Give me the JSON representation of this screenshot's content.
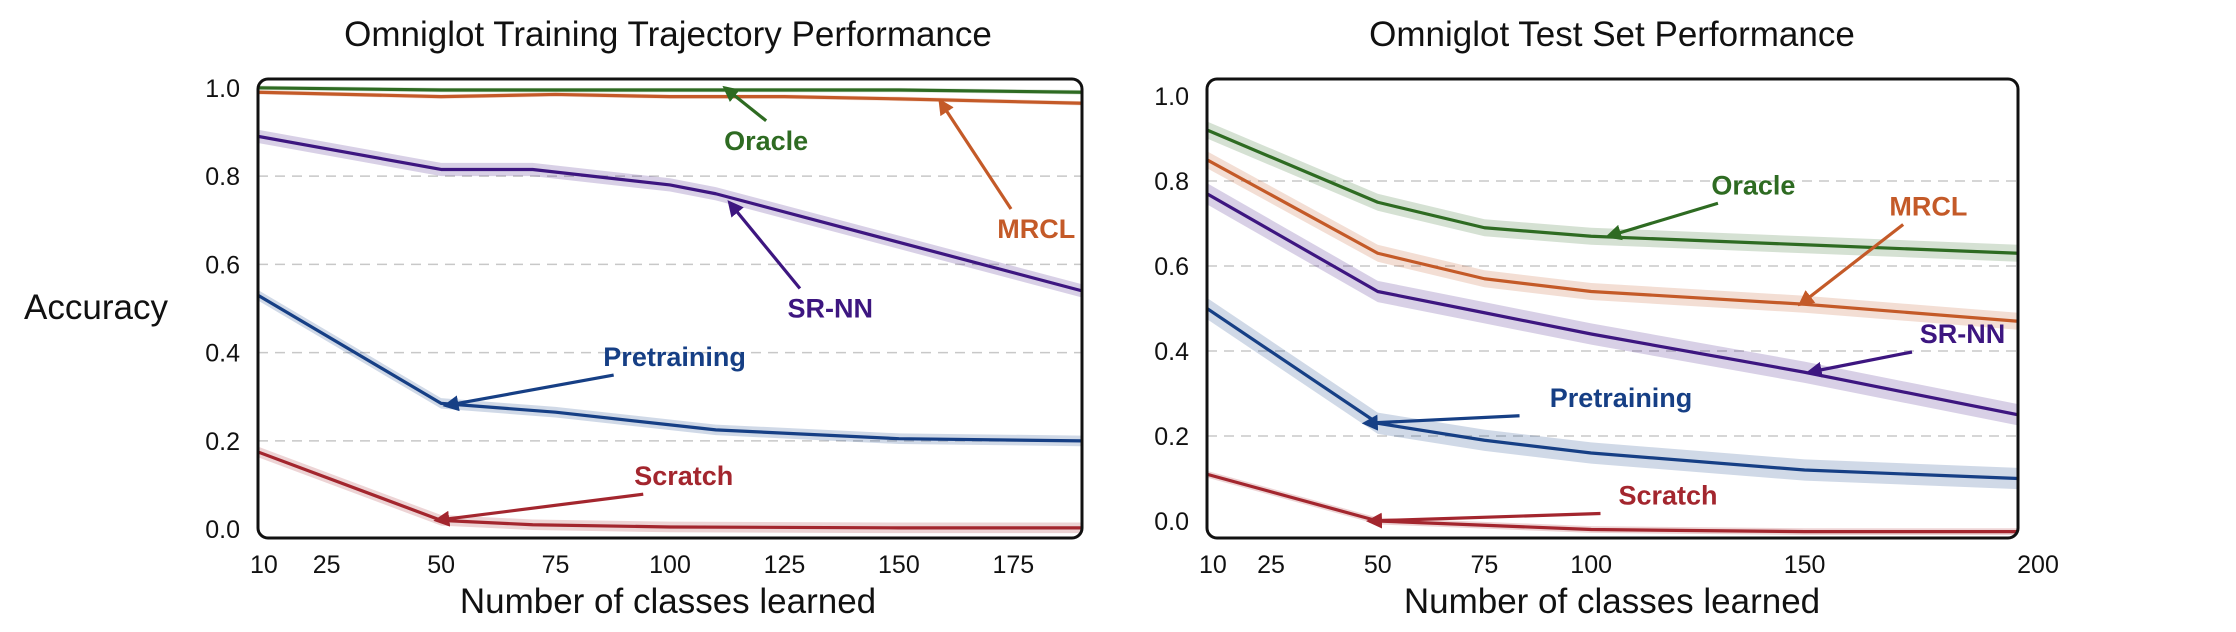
{
  "figure": {
    "ylabel": "Accuracy"
  },
  "colors": {
    "Oracle": "#2e6b22",
    "MRCL": "#c45a28",
    "SR-NN": "#3d1680",
    "Pretraining": "#163f85",
    "Scratch": "#a3262e"
  },
  "chart_data": [
    {
      "type": "line",
      "title": "Omniglot Training Trajectory Performance",
      "xlabel": "Number of classes learned",
      "ylabel": "Accuracy",
      "xlim": [
        10,
        190
      ],
      "ylim": [
        -0.02,
        1.02
      ],
      "xticks": [
        10,
        25,
        50,
        75,
        100,
        125,
        150,
        175
      ],
      "yticks": [
        0.0,
        0.2,
        0.4,
        0.6,
        0.8,
        1.0
      ],
      "ytick_labels": [
        "0.0",
        "0.2",
        "0.4",
        "0.6",
        "0.8",
        "1.0"
      ],
      "grid": "horizontal-dashed",
      "series": [
        {
          "name": "Oracle",
          "x": [
            10,
            50,
            75,
            100,
            125,
            150,
            190
          ],
          "y": [
            1.0,
            0.995,
            0.995,
            0.995,
            0.995,
            0.995,
            0.99
          ],
          "band": 0.005
        },
        {
          "name": "MRCL",
          "x": [
            10,
            50,
            75,
            100,
            125,
            150,
            190
          ],
          "y": [
            0.99,
            0.98,
            0.985,
            0.98,
            0.98,
            0.975,
            0.965
          ],
          "band": 0.005
        },
        {
          "name": "SR-NN",
          "x": [
            10,
            50,
            70,
            100,
            110,
            190
          ],
          "y": [
            0.89,
            0.815,
            0.815,
            0.78,
            0.76,
            0.54
          ],
          "band": 0.015
        },
        {
          "name": "Pretraining",
          "x": [
            10,
            50,
            75,
            110,
            150,
            190
          ],
          "y": [
            0.53,
            0.285,
            0.265,
            0.225,
            0.205,
            0.2
          ],
          "band": 0.012
        },
        {
          "name": "Scratch",
          "x": [
            10,
            50,
            70,
            100,
            150,
            190
          ],
          "y": [
            0.175,
            0.02,
            0.01,
            0.005,
            0.003,
            0.003
          ],
          "band": 0.012
        }
      ],
      "annotations": [
        {
          "text": "Oracle",
          "series": "Oracle",
          "at_x": 121,
          "at_y": 0.88,
          "to_x": 112,
          "to_y": 1.0
        },
        {
          "text": "MRCL",
          "series": "MRCL",
          "at_x": 180,
          "at_y": 0.68,
          "to_x": 159,
          "to_y": 0.97
        },
        {
          "text": "SR-NN",
          "series": "SR-NN",
          "at_x": 135,
          "at_y": 0.5,
          "to_x": 113,
          "to_y": 0.74
        },
        {
          "text": "Pretraining",
          "series": "Pretraining",
          "at_x": 101,
          "at_y": 0.39,
          "to_x": 51,
          "to_y": 0.28
        },
        {
          "text": "Scratch",
          "series": "Scratch",
          "at_x": 103,
          "at_y": 0.12,
          "to_x": 49,
          "to_y": 0.02
        }
      ]
    },
    {
      "type": "line",
      "title": "Omniglot Test Set Performance",
      "xlabel": "Number of classes learned",
      "ylabel": "Accuracy",
      "xlim": [
        10,
        200
      ],
      "ylim": [
        -0.04,
        1.04
      ],
      "xticks": [
        10,
        25,
        50,
        75,
        100,
        150,
        200
      ],
      "yticks": [
        0.0,
        0.2,
        0.4,
        0.6,
        0.8,
        1.0
      ],
      "ytick_labels": [
        "0.0",
        "0.2",
        "0.4",
        "0.6",
        "0.8",
        "1.0"
      ],
      "grid": "horizontal-dashed",
      "series": [
        {
          "name": "Oracle",
          "x": [
            10,
            50,
            75,
            100,
            150,
            200
          ],
          "y": [
            0.92,
            0.75,
            0.69,
            0.67,
            0.65,
            0.63
          ],
          "band": 0.02
        },
        {
          "name": "MRCL",
          "x": [
            10,
            50,
            75,
            100,
            150,
            200
          ],
          "y": [
            0.85,
            0.63,
            0.57,
            0.54,
            0.51,
            0.47
          ],
          "band": 0.02
        },
        {
          "name": "SR-NN",
          "x": [
            10,
            50,
            75,
            100,
            150,
            200
          ],
          "y": [
            0.77,
            0.54,
            0.49,
            0.44,
            0.35,
            0.25
          ],
          "band": 0.025
        },
        {
          "name": "Pretraining",
          "x": [
            10,
            50,
            75,
            100,
            150,
            200
          ],
          "y": [
            0.5,
            0.23,
            0.19,
            0.16,
            0.12,
            0.1
          ],
          "band": 0.025
        },
        {
          "name": "Scratch",
          "x": [
            10,
            50,
            75,
            100,
            150,
            200
          ],
          "y": [
            0.11,
            0.0,
            -0.01,
            -0.02,
            -0.025,
            -0.025
          ],
          "band": 0.008
        }
      ],
      "annotations": [
        {
          "text": "Oracle",
          "series": "Oracle",
          "at_x": 138,
          "at_y": 0.79,
          "to_x": 104,
          "to_y": 0.67
        },
        {
          "text": "MRCL",
          "series": "MRCL",
          "at_x": 179,
          "at_y": 0.74,
          "to_x": 149,
          "to_y": 0.51
        },
        {
          "text": "SR-NN",
          "series": "SR-NN",
          "at_x": 187,
          "at_y": 0.44,
          "to_x": 151,
          "to_y": 0.35
        },
        {
          "text": "Pretraining",
          "series": "Pretraining",
          "at_x": 107,
          "at_y": 0.29,
          "to_x": 47,
          "to_y": 0.23
        },
        {
          "text": "Scratch",
          "series": "Scratch",
          "at_x": 118,
          "at_y": 0.06,
          "to_x": 48,
          "to_y": 0.0
        }
      ]
    }
  ]
}
